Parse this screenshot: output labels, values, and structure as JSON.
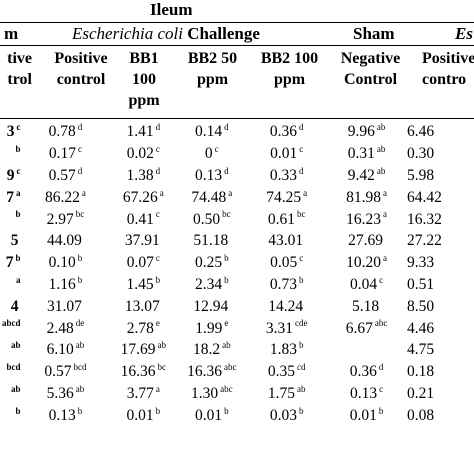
{
  "header": {
    "ileum": "Ileum",
    "left_cut": "m",
    "ecoli_italic": "Escherichia coli",
    "ecoli_rest": " Challenge",
    "sham": "Sham",
    "right_cut": "Es"
  },
  "columns": {
    "c0_l1": "tive",
    "c0_l2": "trol",
    "c1_l1": "Positive",
    "c1_l2": "control",
    "c2_l1": "BB1",
    "c2_l2": "100",
    "c2_l3": "ppm",
    "c3_l1": "BB2 50",
    "c3_l2": "ppm",
    "c4_l1": "BB2 100",
    "c4_l2": "ppm",
    "c5_l1": "Negative",
    "c5_l2": "Control",
    "c6_l1": "Positive",
    "c6_l2": "contro"
  },
  "rows": [
    [
      {
        "v": "3",
        "s": "c"
      },
      {
        "v": "0.78",
        "s": "d"
      },
      {
        "v": "1.41",
        "s": "d"
      },
      {
        "v": "0.14",
        "s": "d"
      },
      {
        "v": "0.36",
        "s": "d"
      },
      {
        "v": "9.96",
        "s": "ab"
      },
      {
        "v": "6.46",
        "s": ""
      }
    ],
    [
      {
        "v": "",
        "s": "b"
      },
      {
        "v": "0.17",
        "s": "c"
      },
      {
        "v": "0.02",
        "s": "c"
      },
      {
        "v": "0",
        "s": "c"
      },
      {
        "v": "0.01",
        "s": "c"
      },
      {
        "v": "0.31",
        "s": "ab"
      },
      {
        "v": "0.30",
        "s": ""
      }
    ],
    [
      {
        "v": "9",
        "s": "c"
      },
      {
        "v": "0.57",
        "s": "d"
      },
      {
        "v": "1.38",
        "s": "d"
      },
      {
        "v": "0.13",
        "s": "d"
      },
      {
        "v": "0.33",
        "s": "d"
      },
      {
        "v": "9.42",
        "s": "ab"
      },
      {
        "v": "5.98",
        "s": ""
      }
    ],
    [
      {
        "v": "7",
        "s": "a"
      },
      {
        "v": "86.22",
        "s": "a"
      },
      {
        "v": "67.26",
        "s": "a"
      },
      {
        "v": "74.48",
        "s": "a"
      },
      {
        "v": "74.25",
        "s": "a"
      },
      {
        "v": "81.98",
        "s": "a"
      },
      {
        "v": "64.42",
        "s": ""
      }
    ],
    [
      {
        "v": "",
        "s": "b"
      },
      {
        "v": "2.97",
        "s": "bc"
      },
      {
        "v": "0.41",
        "s": "c"
      },
      {
        "v": "0.50",
        "s": "bc"
      },
      {
        "v": "0.61",
        "s": "bc"
      },
      {
        "v": "16.23",
        "s": "a"
      },
      {
        "v": "16.32",
        "s": ""
      }
    ],
    [
      {
        "v": "5",
        "s": ""
      },
      {
        "v": "44.09",
        "s": ""
      },
      {
        "v": "37.91",
        "s": ""
      },
      {
        "v": "51.18",
        "s": ""
      },
      {
        "v": "43.01",
        "s": ""
      },
      {
        "v": "27.69",
        "s": ""
      },
      {
        "v": "27.22",
        "s": ""
      }
    ],
    [
      {
        "v": "7",
        "s": "b"
      },
      {
        "v": "0.10",
        "s": "b"
      },
      {
        "v": "0.07",
        "s": "c"
      },
      {
        "v": "0.25",
        "s": "b"
      },
      {
        "v": "0.05",
        "s": "c"
      },
      {
        "v": "10.20",
        "s": "a"
      },
      {
        "v": "9.33",
        "s": ""
      }
    ],
    [
      {
        "v": "",
        "s": "a"
      },
      {
        "v": "1.16",
        "s": "b"
      },
      {
        "v": "1.45",
        "s": "b"
      },
      {
        "v": "2.34",
        "s": "b"
      },
      {
        "v": "0.73",
        "s": "b"
      },
      {
        "v": "0.04",
        "s": "c"
      },
      {
        "v": "0.51",
        "s": ""
      }
    ],
    [
      {
        "v": "4",
        "s": ""
      },
      {
        "v": "31.07",
        "s": ""
      },
      {
        "v": "13.07",
        "s": ""
      },
      {
        "v": "12.94",
        "s": ""
      },
      {
        "v": "14.24",
        "s": ""
      },
      {
        "v": "5.18",
        "s": ""
      },
      {
        "v": "8.50",
        "s": ""
      }
    ],
    [
      {
        "v": "",
        "s": "abcd"
      },
      {
        "v": "2.48",
        "s": "de"
      },
      {
        "v": "2.78",
        "s": "e"
      },
      {
        "v": "1.99",
        "s": "e"
      },
      {
        "v": "3.31",
        "s": "cde"
      },
      {
        "v": "6.67",
        "s": "abc"
      },
      {
        "v": "4.46",
        "s": ""
      }
    ],
    [
      {
        "v": "",
        "s": "ab"
      },
      {
        "v": "6.10",
        "s": "ab"
      },
      {
        "v": "17.69",
        "s": "ab"
      },
      {
        "v": "18.2",
        "s": "ab"
      },
      {
        "v": "1.83",
        "s": "b"
      },
      {
        "v": "",
        "s": ""
      },
      {
        "v": "4.75",
        "s": ""
      }
    ],
    [
      {
        "v": "",
        "s": "bcd"
      },
      {
        "v": "0.57",
        "s": "bcd"
      },
      {
        "v": "16.36",
        "s": "bc"
      },
      {
        "v": "16.36",
        "s": "abc"
      },
      {
        "v": "0.35",
        "s": "cd"
      },
      {
        "v": "0.36",
        "s": "d"
      },
      {
        "v": "0.18",
        "s": ""
      }
    ],
    [
      {
        "v": "",
        "s": "ab"
      },
      {
        "v": "5.36",
        "s": "ab"
      },
      {
        "v": "3.77",
        "s": "a"
      },
      {
        "v": "1.30",
        "s": "abc"
      },
      {
        "v": "1.75",
        "s": "ab"
      },
      {
        "v": "0.13",
        "s": "c"
      },
      {
        "v": "0.21",
        "s": ""
      }
    ],
    [
      {
        "v": "",
        "s": "b"
      },
      {
        "v": "0.13",
        "s": "b"
      },
      {
        "v": "0.01",
        "s": "b"
      },
      {
        "v": "0.01",
        "s": "b"
      },
      {
        "v": "0.03",
        "s": "b"
      },
      {
        "v": "0.01",
        "s": "b"
      },
      {
        "v": "0.08",
        "s": ""
      }
    ],
    [
      {
        "v": "",
        "s": ""
      },
      {
        "v": "",
        "s": ""
      },
      {
        "v": "",
        "s": ""
      },
      {
        "v": "",
        "s": ""
      },
      {
        "v": "",
        "s": ""
      },
      {
        "v": "",
        "s": ""
      },
      {
        "v": "",
        "s": ""
      }
    ]
  ]
}
